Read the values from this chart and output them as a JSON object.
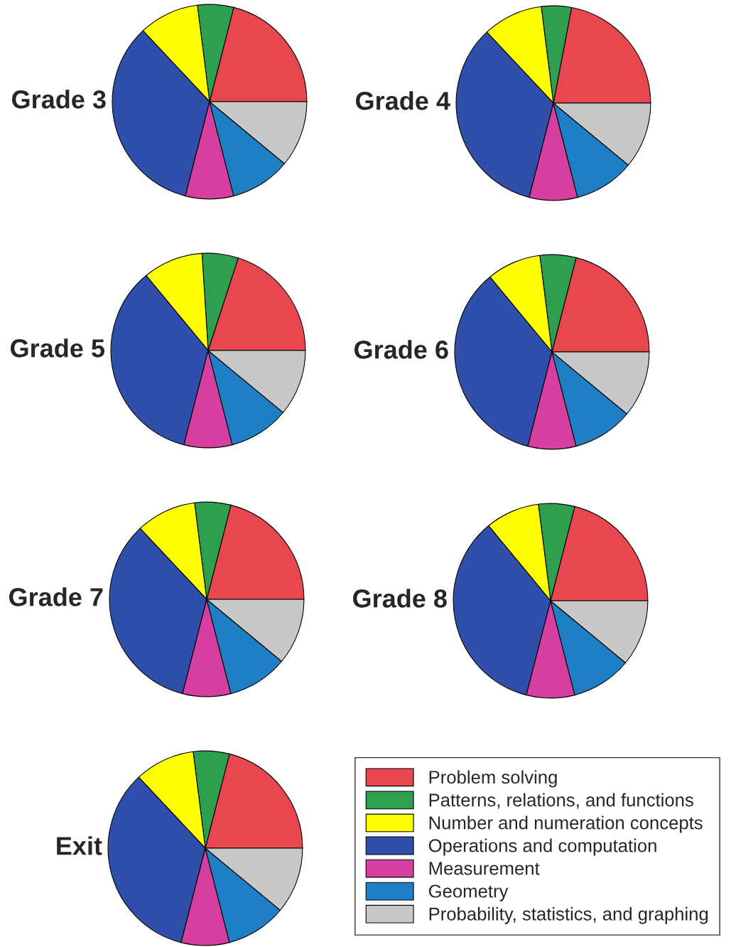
{
  "chart_data": [
    {
      "type": "pie",
      "title": "Grade 3",
      "categories": [
        "Problem solving",
        "Patterns, relations, and functions",
        "Number and numeration concepts",
        "Operations and computation",
        "Measurement",
        "Geometry",
        "Probability, statistics, and graphing"
      ],
      "values": [
        21,
        6,
        10,
        34,
        8,
        10,
        11
      ],
      "colors": [
        "#e8474f",
        "#2e9e4f",
        "#ffff00",
        "#2f4faa",
        "#d63fa0",
        "#1f7fc4",
        "#c8c8c8"
      ],
      "legend": "bottom right"
    },
    {
      "type": "pie",
      "title": "Grade 4",
      "categories": [
        null,
        null,
        null,
        null,
        null,
        null,
        null
      ],
      "values": [
        22,
        5,
        10,
        34,
        8,
        10,
        11
      ],
      "colors": [
        "#e8474f",
        "#2e9e4f",
        "#ffff00",
        "#2f4faa",
        "#d63fa0",
        "#1f7fc4",
        "#c8c8c8"
      ]
    },
    {
      "type": "pie",
      "title": "Grade 5",
      "categories": [
        null,
        null,
        null,
        null,
        null,
        null,
        null
      ],
      "values": [
        20,
        6,
        10,
        35,
        8,
        10,
        11
      ],
      "colors": [
        "#e8474f",
        "#2e9e4f",
        "#ffff00",
        "#2f4faa",
        "#d63fa0",
        "#1f7fc4",
        "#c8c8c8"
      ]
    },
    {
      "type": "pie",
      "title": "Grade 6",
      "categories": [
        null,
        null,
        null,
        null,
        null,
        null,
        null
      ],
      "values": [
        21,
        6,
        9,
        35,
        8,
        10,
        11
      ],
      "colors": [
        "#e8474f",
        "#2e9e4f",
        "#ffff00",
        "#2f4faa",
        "#d63fa0",
        "#1f7fc4",
        "#c8c8c8"
      ]
    },
    {
      "type": "pie",
      "title": "Grade 7",
      "categories": [
        null,
        null,
        null,
        null,
        null,
        null,
        null
      ],
      "values": [
        21,
        6,
        10,
        34,
        8,
        10,
        11
      ],
      "colors": [
        "#e8474f",
        "#2e9e4f",
        "#ffff00",
        "#2f4faa",
        "#d63fa0",
        "#1f7fc4",
        "#c8c8c8"
      ]
    },
    {
      "type": "pie",
      "title": "Grade 8",
      "categories": [
        null,
        null,
        null,
        null,
        null,
        null,
        null
      ],
      "values": [
        21,
        6,
        9,
        35,
        8,
        10,
        11
      ],
      "colors": [
        "#e8474f",
        "#2e9e4f",
        "#ffff00",
        "#2f4faa",
        "#d63fa0",
        "#1f7fc4",
        "#c8c8c8"
      ]
    },
    {
      "type": "pie",
      "title": "Exit",
      "categories": [
        null,
        null,
        null,
        null,
        null,
        null,
        null
      ],
      "values": [
        21,
        6,
        10,
        34,
        8,
        10,
        11
      ],
      "colors": [
        "#e8474f",
        "#2e9e4f",
        "#ffff00",
        "#2f4faa",
        "#d63fa0",
        "#1f7fc4",
        "#c8c8c8"
      ]
    }
  ]
}
